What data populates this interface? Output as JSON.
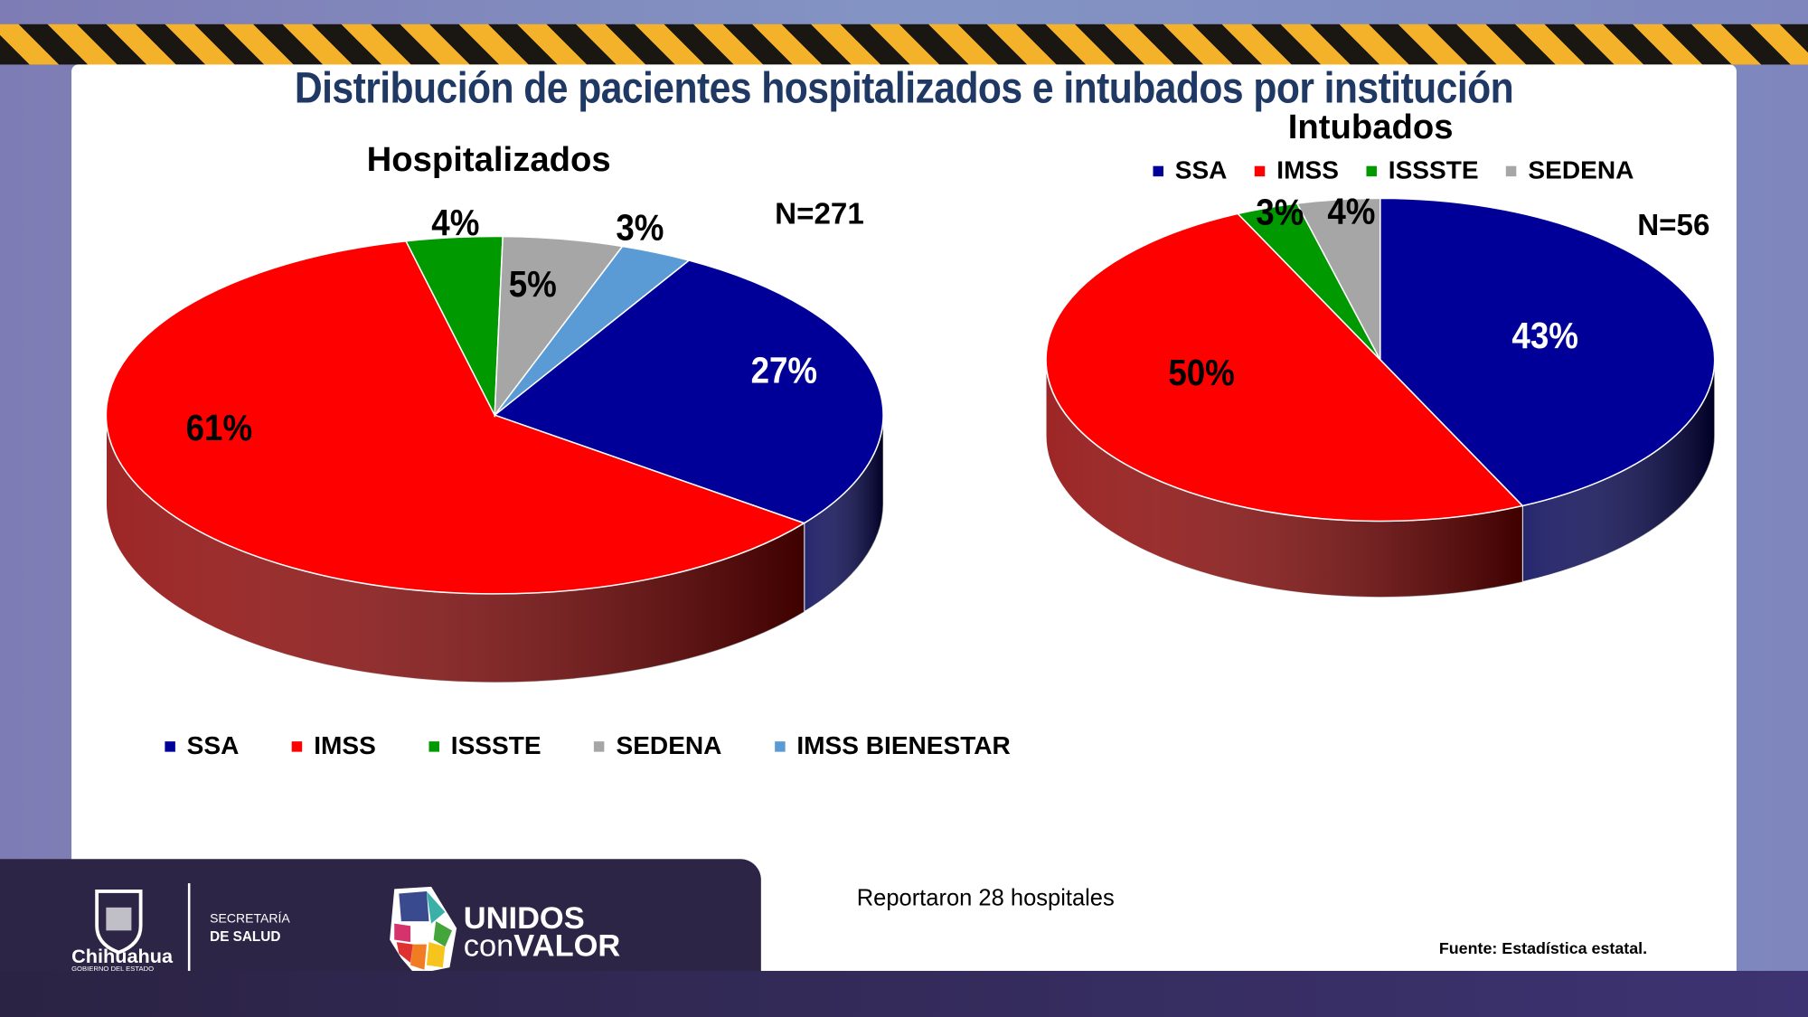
{
  "title": "Distribución de pacientes hospitalizados e intubados por institución",
  "chart_data": [
    {
      "type": "pie",
      "title": "Hospitalizados",
      "annotation": "N=271",
      "categories": [
        "SSA",
        "IMSS",
        "ISSSTE",
        "SEDENA",
        "IMSS BIENESTAR"
      ],
      "values": [
        27,
        61,
        4,
        5,
        3
      ],
      "labels": [
        "27%",
        "61%",
        "4%",
        "5%",
        "3%"
      ],
      "colors": [
        "#000099",
        "#ff0000",
        "#009900",
        "#a6a6a6",
        "#5b9bd5"
      ],
      "legend_position": "bottom",
      "style": "3d"
    },
    {
      "type": "pie",
      "title": "Intubados",
      "annotation": "N=56",
      "categories": [
        "SSA",
        "IMSS",
        "ISSSTE",
        "SEDENA"
      ],
      "values": [
        43,
        50,
        3,
        4
      ],
      "labels": [
        "43%",
        "50%",
        "3%",
        "4%"
      ],
      "colors": [
        "#000099",
        "#ff0000",
        "#009900",
        "#a6a6a6"
      ],
      "legend_position": "top",
      "style": "3d"
    }
  ],
  "note": "Reportaron 28 hospitales",
  "source": "Fuente: Estadística estatal.",
  "footer": {
    "gov_name": "Chihuahua",
    "gov_sub": "GOBIERNO DEL ESTADO",
    "dept_line1": "SECRETARÍA",
    "dept_line2": "DE SALUD",
    "campaign_line1": "UNIDOS",
    "campaign_con": "con",
    "campaign_valor": "VALOR"
  }
}
